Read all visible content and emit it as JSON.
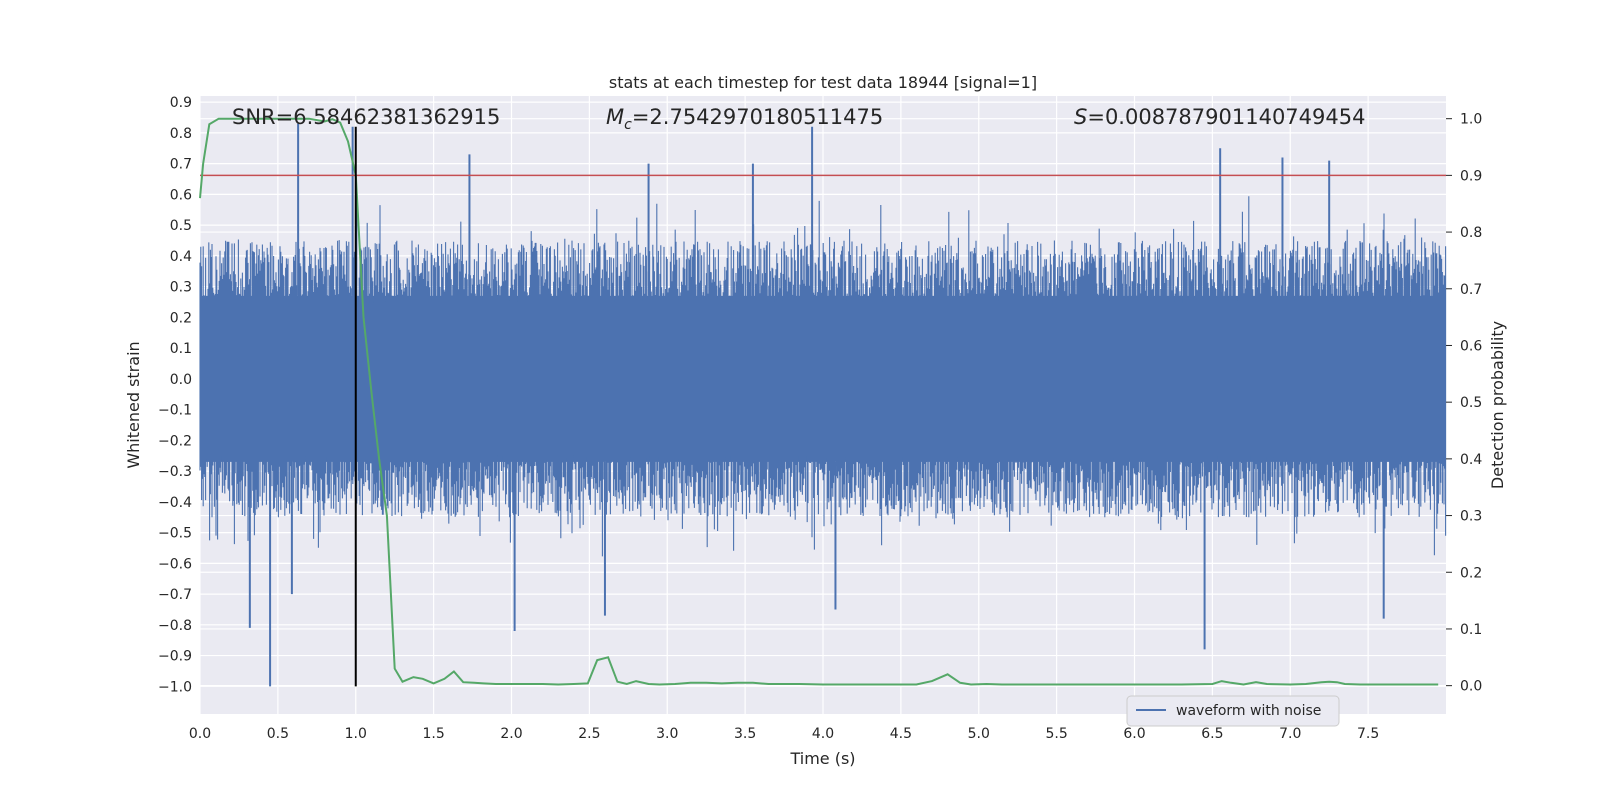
{
  "chart_data": {
    "type": "line",
    "title": "stats at each timestep for test data 18944 [signal=1]",
    "xlabel": "Time (s)",
    "ylabel": "Whitened strain",
    "ylabel_right": "Detection probability",
    "xlim": [
      0.0,
      8.0
    ],
    "ylim": [
      -1.09,
      0.92
    ],
    "ylim_right": [
      -0.05,
      1.04
    ],
    "x_ticks": [
      "0.0",
      "0.5",
      "1.0",
      "1.5",
      "2.0",
      "2.5",
      "3.0",
      "3.5",
      "4.0",
      "4.5",
      "5.0",
      "5.5",
      "6.0",
      "6.5",
      "7.0",
      "7.5"
    ],
    "y_ticks": [
      "0.9",
      "0.8",
      "0.7",
      "0.6",
      "0.5",
      "0.4",
      "0.3",
      "0.2",
      "0.1",
      "0.0",
      "−0.1",
      "−0.2",
      "−0.3",
      "−0.4",
      "−0.5",
      "−0.6",
      "−0.7",
      "−0.8",
      "−0.9",
      "−1.0"
    ],
    "y_right_ticks": [
      "1.0",
      "0.9",
      "0.8",
      "0.7",
      "0.6",
      "0.5",
      "0.4",
      "0.3",
      "0.2",
      "0.1",
      "0.0"
    ],
    "grid": true,
    "background": "#eaeaf2",
    "annotations": {
      "snr": "SNR=6.58462381362915",
      "mc_sym": "M",
      "mc_sub": "c",
      "mc_val": "=2.7542970180511475",
      "s_sym": "S",
      "s_val": "=0.008787901140749454"
    },
    "legend": {
      "placement": "lower-right",
      "label": "waveform with noise"
    },
    "series": [
      {
        "name": "waveform with noise",
        "axis": "left",
        "color": "#4c72b0",
        "band_core": [
          -0.27,
          0.27
        ],
        "band_typical": [
          -0.45,
          0.45
        ],
        "spikes": [
          {
            "x": 0.45,
            "y": -1.0
          },
          {
            "x": 0.32,
            "y": -0.81
          },
          {
            "x": 0.63,
            "y": 0.83
          },
          {
            "x": 0.59,
            "y": -0.7
          },
          {
            "x": 0.98,
            "y": 0.82
          },
          {
            "x": 1.73,
            "y": 0.73
          },
          {
            "x": 2.02,
            "y": -0.82
          },
          {
            "x": 2.6,
            "y": -0.77
          },
          {
            "x": 2.88,
            "y": 0.7
          },
          {
            "x": 3.93,
            "y": 0.82
          },
          {
            "x": 3.55,
            "y": 0.7
          },
          {
            "x": 4.08,
            "y": -0.75
          },
          {
            "x": 6.45,
            "y": -0.88
          },
          {
            "x": 6.55,
            "y": 0.75
          },
          {
            "x": 6.95,
            "y": 0.72
          },
          {
            "x": 7.25,
            "y": 0.71
          },
          {
            "x": 7.6,
            "y": -0.78
          }
        ]
      },
      {
        "name": "detection probability",
        "axis": "right",
        "color": "#55a868",
        "x": [
          0.0,
          0.02,
          0.06,
          0.12,
          0.2,
          0.3,
          0.4,
          0.5,
          0.6,
          0.7,
          0.8,
          0.85,
          0.9,
          0.95,
          1.0,
          1.05,
          1.1,
          1.15,
          1.2,
          1.25,
          1.3,
          1.37,
          1.43,
          1.5,
          1.57,
          1.63,
          1.69,
          1.76,
          1.82,
          1.9,
          2.0,
          2.1,
          2.2,
          2.3,
          2.4,
          2.49,
          2.55,
          2.62,
          2.68,
          2.74,
          2.8,
          2.88,
          2.95,
          3.05,
          3.15,
          3.25,
          3.35,
          3.45,
          3.55,
          3.65,
          3.75,
          3.85,
          4.0,
          4.2,
          4.4,
          4.6,
          4.7,
          4.8,
          4.88,
          4.95,
          5.05,
          5.15,
          5.3,
          5.5,
          5.7,
          5.9,
          6.1,
          6.3,
          6.5,
          6.56,
          6.62,
          6.7,
          6.78,
          6.85,
          7.0,
          7.1,
          7.2,
          7.25,
          7.3,
          7.35,
          7.45,
          7.6,
          7.8,
          7.95
        ],
        "y": [
          0.86,
          0.92,
          0.99,
          1.0,
          1.0,
          1.0,
          1.0,
          1.0,
          1.0,
          1.0,
          0.995,
          0.999,
          0.993,
          0.96,
          0.9,
          0.65,
          0.52,
          0.4,
          0.3,
          0.03,
          0.007,
          0.015,
          0.012,
          0.004,
          0.012,
          0.025,
          0.006,
          0.005,
          0.004,
          0.003,
          0.003,
          0.003,
          0.003,
          0.002,
          0.003,
          0.004,
          0.045,
          0.05,
          0.007,
          0.003,
          0.008,
          0.003,
          0.002,
          0.003,
          0.005,
          0.005,
          0.004,
          0.005,
          0.005,
          0.003,
          0.003,
          0.003,
          0.002,
          0.002,
          0.002,
          0.002,
          0.008,
          0.02,
          0.005,
          0.002,
          0.003,
          0.002,
          0.002,
          0.002,
          0.002,
          0.002,
          0.002,
          0.002,
          0.003,
          0.008,
          0.005,
          0.002,
          0.006,
          0.003,
          0.002,
          0.003,
          0.006,
          0.007,
          0.006,
          0.003,
          0.002,
          0.002,
          0.002,
          0.002
        ]
      },
      {
        "name": "threshold",
        "axis": "right",
        "color": "#c44e52",
        "y": 0.9
      },
      {
        "name": "marker",
        "axis": "left",
        "color": "#000000",
        "x": 1.0,
        "y_range": [
          -1.0,
          0.82
        ]
      }
    ]
  }
}
